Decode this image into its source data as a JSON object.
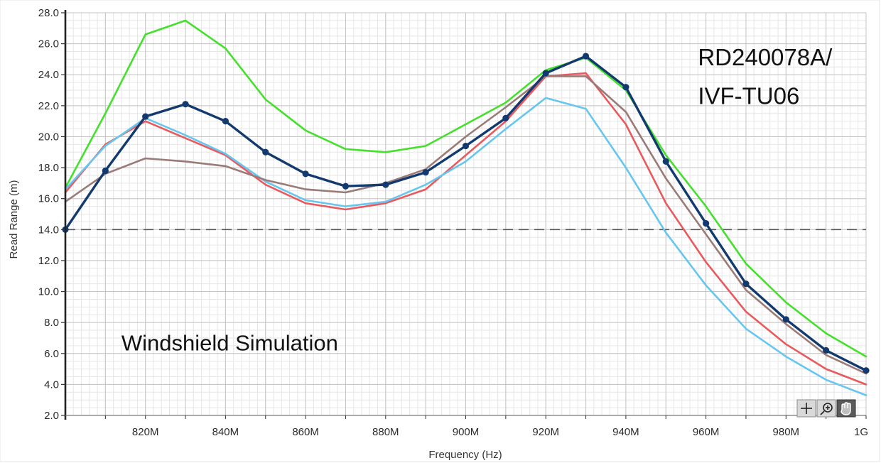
{
  "chart_data": {
    "type": "line",
    "xlabel": "Frequency (Hz)",
    "ylabel": "Read Range (m)",
    "xlim": [
      800,
      1000
    ],
    "ylim": [
      2.0,
      28.0
    ],
    "grid": true,
    "x_tick_values": [
      820,
      840,
      860,
      880,
      900,
      920,
      940,
      960,
      980,
      1000
    ],
    "x_tick_labels": [
      "820M",
      "840M",
      "860M",
      "880M",
      "900M",
      "920M",
      "940M",
      "960M",
      "980M",
      "1G"
    ],
    "y_tick_values": [
      2,
      4,
      6,
      8,
      10,
      12,
      14,
      16,
      18,
      20,
      22,
      24,
      26,
      28
    ],
    "y_tick_labels": [
      "2.0",
      "4.0",
      "6.0",
      "8.0",
      "10.0",
      "12.0",
      "14.0",
      "16.0",
      "18.0",
      "20.0",
      "22.0",
      "24.0",
      "26.0",
      "28.0"
    ],
    "x": [
      800,
      810,
      820,
      830,
      840,
      850,
      860,
      870,
      880,
      890,
      900,
      910,
      920,
      930,
      940,
      950,
      960,
      970,
      980,
      990,
      1000
    ],
    "series": [
      {
        "color": "#44e02c",
        "markers": false,
        "values": [
          16.7,
          21.5,
          26.6,
          27.5,
          25.7,
          22.4,
          20.4,
          19.2,
          19.0,
          19.4,
          20.8,
          22.2,
          24.3,
          25.1,
          23.0,
          18.8,
          15.5,
          11.8,
          9.3,
          7.3,
          5.8
        ]
      },
      {
        "color": "#e85a5e",
        "markers": false,
        "values": [
          16.4,
          19.5,
          21.0,
          19.9,
          18.8,
          16.9,
          15.7,
          15.3,
          15.7,
          16.6,
          18.8,
          21.0,
          23.9,
          24.1,
          20.8,
          15.7,
          11.9,
          8.7,
          6.6,
          5.0,
          4.0
        ]
      },
      {
        "color": "#66c6f0",
        "markers": false,
        "values": [
          16.6,
          19.4,
          21.2,
          20.1,
          18.9,
          17.1,
          15.9,
          15.5,
          15.8,
          16.9,
          18.4,
          20.5,
          22.5,
          21.8,
          18.0,
          13.8,
          10.4,
          7.6,
          5.8,
          4.3,
          3.3
        ]
      },
      {
        "color": "#9a7b78",
        "markers": false,
        "values": [
          15.8,
          17.6,
          18.6,
          18.4,
          18.1,
          17.2,
          16.6,
          16.4,
          17.0,
          17.9,
          20.0,
          21.9,
          23.9,
          23.9,
          21.6,
          17.3,
          13.7,
          10.1,
          7.9,
          5.9,
          4.7
        ]
      },
      {
        "color": "#133a6e",
        "markers": true,
        "values": [
          14.0,
          17.8,
          21.3,
          22.1,
          21.0,
          19.0,
          17.6,
          16.8,
          16.9,
          17.7,
          19.4,
          21.2,
          24.1,
          25.2,
          23.2,
          18.4,
          14.4,
          10.5,
          8.2,
          6.2,
          4.9
        ]
      }
    ],
    "reference_line": {
      "y": 14.0,
      "style": "dashed",
      "color": "#555555"
    },
    "annotations": [
      {
        "text": "RD240078A/",
        "x": 958,
        "y": 24.6
      },
      {
        "text": "IVF-TU06",
        "x": 958,
        "y": 22.1
      },
      {
        "text": "Windshield Simulation",
        "x": 814,
        "y": 6.2
      }
    ]
  }
}
